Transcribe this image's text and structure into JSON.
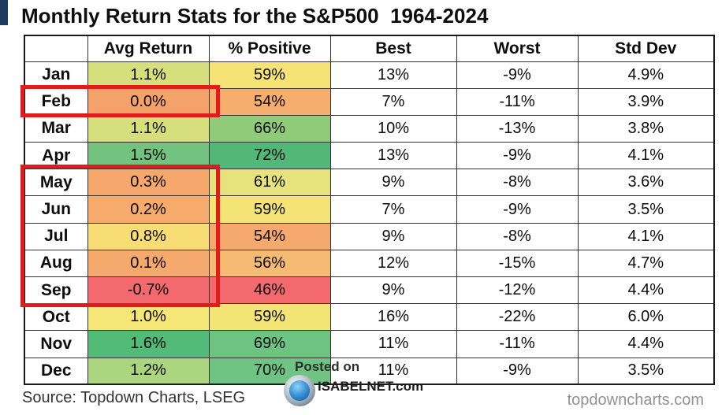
{
  "page": {
    "title": "Monthly Return Stats for the S&P500  1964-2024",
    "source": "Source: Topdown Charts, LSEG",
    "site": "topdowncharts.com",
    "watermark": {
      "line1": "Posted on",
      "line2": "ISABELNET.com"
    },
    "accent_color": "#1e3a5c",
    "highlight_color": "#e21b1b"
  },
  "chart_data": {
    "type": "table",
    "title": "Monthly Return Stats for the S&P500 1964-2024",
    "columns": [
      "",
      "Avg Return",
      "% Positive",
      "Best",
      "Worst",
      "Std Dev"
    ],
    "rows": [
      {
        "month": "Jan",
        "avg_return": "1.1%",
        "pct_positive": "59%",
        "best": "13%",
        "worst": "-9%",
        "std_dev": "4.9%",
        "avg_color": "#d7de7c",
        "pct_color": "#f5e475"
      },
      {
        "month": "Feb",
        "avg_return": "0.0%",
        "pct_positive": "54%",
        "best": "7%",
        "worst": "-11%",
        "std_dev": "3.9%",
        "avg_color": "#f4a269",
        "pct_color": "#f6ae6e"
      },
      {
        "month": "Mar",
        "avg_return": "1.1%",
        "pct_positive": "66%",
        "best": "10%",
        "worst": "-13%",
        "std_dev": "3.8%",
        "avg_color": "#d7de7c",
        "pct_color": "#90cb79"
      },
      {
        "month": "Apr",
        "avg_return": "1.5%",
        "pct_positive": "72%",
        "best": "13%",
        "worst": "-9%",
        "std_dev": "4.1%",
        "avg_color": "#74c27f",
        "pct_color": "#52b878"
      },
      {
        "month": "May",
        "avg_return": "0.3%",
        "pct_positive": "61%",
        "best": "9%",
        "worst": "-8%",
        "std_dev": "3.6%",
        "avg_color": "#f6a86c",
        "pct_color": "#e6e27c"
      },
      {
        "month": "Jun",
        "avg_return": "0.2%",
        "pct_positive": "59%",
        "best": "7%",
        "worst": "-9%",
        "std_dev": "3.5%",
        "avg_color": "#f6aa6c",
        "pct_color": "#f4e475"
      },
      {
        "month": "Jul",
        "avg_return": "0.8%",
        "pct_positive": "54%",
        "best": "9%",
        "worst": "-8%",
        "std_dev": "4.1%",
        "avg_color": "#f8dd75",
        "pct_color": "#f5a96c"
      },
      {
        "month": "Aug",
        "avg_return": "0.1%",
        "pct_positive": "56%",
        "best": "12%",
        "worst": "-15%",
        "std_dev": "4.7%",
        "avg_color": "#f6a96c",
        "pct_color": "#f6bb72"
      },
      {
        "month": "Sep",
        "avg_return": "-0.7%",
        "pct_positive": "46%",
        "best": "9%",
        "worst": "-12%",
        "std_dev": "4.4%",
        "avg_color": "#f4696e",
        "pct_color": "#f4696e"
      },
      {
        "month": "Oct",
        "avg_return": "1.0%",
        "pct_positive": "59%",
        "best": "16%",
        "worst": "-22%",
        "std_dev": "6.0%",
        "avg_color": "#f6e577",
        "pct_color": "#f4e475"
      },
      {
        "month": "Nov",
        "avg_return": "1.6%",
        "pct_positive": "69%",
        "best": "11%",
        "worst": "-11%",
        "std_dev": "4.4%",
        "avg_color": "#53bb78",
        "pct_color": "#6cc382"
      },
      {
        "month": "Dec",
        "avg_return": "1.2%",
        "pct_positive": "70%",
        "best": "11%",
        "worst": "-9%",
        "std_dev": "3.5%",
        "avg_color": "#abd57f",
        "pct_color": "#6fc483"
      }
    ],
    "highlighted_rows": [
      "Feb",
      "May",
      "Jun",
      "Jul",
      "Aug",
      "Sep"
    ],
    "legend_position": "none",
    "grid": true
  }
}
